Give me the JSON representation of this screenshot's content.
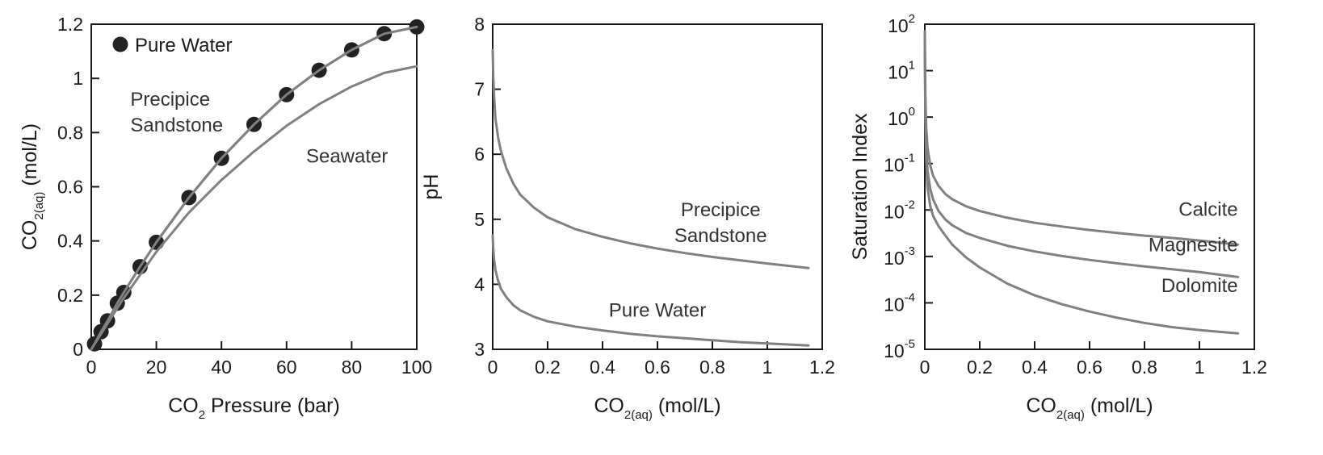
{
  "chart_data": [
    {
      "type": "line",
      "xlabel": {
        "main": "CO",
        "sub": "2",
        "rest": " Pressure (bar)"
      },
      "ylabel": {
        "main": "CO",
        "sub": "2(aq)",
        "rest": " (mol/L)"
      },
      "xlim": [
        0,
        100
      ],
      "ylim": [
        0,
        1.2
      ],
      "xticks": [
        0,
        20,
        40,
        60,
        80,
        100
      ],
      "yticks": [
        0,
        0.2,
        0.4,
        0.6,
        0.8,
        1.0,
        1.2
      ],
      "xtick_labels": [
        "0",
        "20",
        "40",
        "60",
        "80",
        "100"
      ],
      "ytick_labels": [
        "0",
        "0.2",
        "0.4",
        "0.6",
        "0.8",
        "1",
        "1.2"
      ],
      "grid": false,
      "legend": {
        "position": "top-left",
        "entries": [
          "Pure Water"
        ]
      },
      "series": [
        {
          "name": "Pure Water",
          "marker": "circle",
          "x": [
            1,
            3,
            5,
            8,
            10,
            15,
            20,
            30,
            40,
            50,
            60,
            70,
            80,
            90,
            100
          ],
          "y": [
            0.02,
            0.065,
            0.105,
            0.17,
            0.21,
            0.305,
            0.395,
            0.56,
            0.705,
            0.83,
            0.94,
            1.03,
            1.105,
            1.165,
            1.19
          ]
        },
        {
          "name": "Precipice Sandstone",
          "x": [
            0,
            1,
            3,
            5,
            8,
            10,
            15,
            20,
            30,
            40,
            50,
            60,
            70,
            80,
            90,
            100
          ],
          "y": [
            0,
            0.02,
            0.065,
            0.105,
            0.17,
            0.21,
            0.305,
            0.395,
            0.56,
            0.705,
            0.83,
            0.94,
            1.03,
            1.105,
            1.165,
            1.19
          ]
        },
        {
          "name": "Seawater",
          "x": [
            0,
            5,
            10,
            20,
            30,
            40,
            50,
            60,
            70,
            80,
            90,
            100
          ],
          "y": [
            0,
            0.095,
            0.19,
            0.36,
            0.505,
            0.625,
            0.73,
            0.825,
            0.905,
            0.97,
            1.02,
            1.045
          ]
        }
      ],
      "annotations": [
        {
          "lines": [
            "Precipice",
            "Sandstone"
          ],
          "x": 12,
          "y": 0.9
        },
        {
          "lines": [
            "Seawater"
          ],
          "x": 66,
          "y": 0.69
        }
      ]
    },
    {
      "type": "line",
      "xlabel": {
        "main": "CO",
        "sub": "2(aq)",
        "rest": " (mol/L)"
      },
      "ylabel": {
        "main": "pH",
        "sub": "",
        "rest": ""
      },
      "xlim": [
        0,
        1.2
      ],
      "ylim": [
        3,
        8
      ],
      "xticks": [
        0,
        0.2,
        0.4,
        0.6,
        0.8,
        1.0,
        1.2
      ],
      "yticks": [
        3,
        4,
        5,
        6,
        7,
        8
      ],
      "xtick_labels": [
        "0",
        "0.2",
        "0.4",
        "0.6",
        "0.8",
        "1",
        "1.2"
      ],
      "ytick_labels": [
        "3",
        "4",
        "5",
        "6",
        "7",
        "8"
      ],
      "grid": false,
      "series": [
        {
          "name": "Precipice Sandstone",
          "x": [
            0,
            0.002,
            0.005,
            0.01,
            0.02,
            0.03,
            0.05,
            0.075,
            0.1,
            0.15,
            0.2,
            0.3,
            0.4,
            0.5,
            0.6,
            0.7,
            0.8,
            0.9,
            1.0,
            1.15
          ],
          "y": [
            7.6,
            7.2,
            6.9,
            6.55,
            6.25,
            6.05,
            5.78,
            5.55,
            5.38,
            5.18,
            5.03,
            4.85,
            4.73,
            4.63,
            4.55,
            4.48,
            4.42,
            4.37,
            4.32,
            4.25
          ]
        },
        {
          "name": "Pure Water",
          "x": [
            0,
            0.002,
            0.005,
            0.01,
            0.02,
            0.03,
            0.05,
            0.075,
            0.1,
            0.15,
            0.2,
            0.3,
            0.4,
            0.5,
            0.6,
            0.7,
            0.8,
            0.9,
            1.0,
            1.15
          ],
          "y": [
            4.75,
            4.55,
            4.38,
            4.22,
            4.05,
            3.93,
            3.8,
            3.68,
            3.6,
            3.5,
            3.43,
            3.35,
            3.29,
            3.24,
            3.2,
            3.17,
            3.14,
            3.11,
            3.09,
            3.06
          ]
        }
      ],
      "annotations": [
        {
          "lines": [
            "Precipice",
            "Sandstone"
          ],
          "x": 0.83,
          "y": 5.05
        },
        {
          "lines": [
            "Pure Water"
          ],
          "x": 0.6,
          "y": 3.5
        }
      ]
    },
    {
      "type": "line",
      "xlabel": {
        "main": "CO",
        "sub": "2(aq)",
        "rest": " (mol/L)"
      },
      "ylabel": {
        "main": "Saturation Index",
        "sub": "",
        "rest": ""
      },
      "xlim": [
        0,
        1.2
      ],
      "ylim": [
        -5,
        2
      ],
      "yscale": "log",
      "xticks": [
        0,
        0.2,
        0.4,
        0.6,
        0.8,
        1.0,
        1.2
      ],
      "xtick_labels": [
        "0",
        "0.2",
        "0.4",
        "0.6",
        "0.8",
        "1",
        "1.2"
      ],
      "yticks": [
        -5,
        -4,
        -3,
        -2,
        -1,
        0,
        1,
        2
      ],
      "ytick_labels": [
        {
          "base": "10",
          "exp": "-5"
        },
        {
          "base": "10",
          "exp": "-4"
        },
        {
          "base": "10",
          "exp": "-3"
        },
        {
          "base": "10",
          "exp": "-2"
        },
        {
          "base": "10",
          "exp": "-1"
        },
        {
          "base": "10",
          "exp": "0"
        },
        {
          "base": "10",
          "exp": "1"
        },
        {
          "base": "10",
          "exp": "2"
        }
      ],
      "grid": false,
      "series": [
        {
          "name": "Calcite",
          "x": [
            0,
            0.002,
            0.005,
            0.01,
            0.02,
            0.03,
            0.05,
            0.075,
            0.1,
            0.15,
            0.2,
            0.3,
            0.4,
            0.5,
            0.6,
            0.7,
            0.8,
            0.9,
            1.0,
            1.14
          ],
          "y": [
            70,
            3.2,
            0.6,
            0.22,
            0.09,
            0.055,
            0.033,
            0.022,
            0.017,
            0.012,
            0.0095,
            0.0068,
            0.0053,
            0.0044,
            0.0037,
            0.0032,
            0.0028,
            0.0025,
            0.0022,
            0.0018
          ]
        },
        {
          "name": "Magnesite",
          "x": [
            0,
            0.002,
            0.005,
            0.01,
            0.02,
            0.03,
            0.05,
            0.075,
            0.1,
            0.15,
            0.2,
            0.3,
            0.4,
            0.5,
            0.6,
            0.7,
            0.8,
            0.9,
            1.0,
            1.14
          ],
          "y": [
            25,
            1.1,
            0.2,
            0.07,
            0.028,
            0.017,
            0.0095,
            0.0062,
            0.0047,
            0.0032,
            0.0025,
            0.0017,
            0.00128,
            0.00102,
            0.00084,
            0.00071,
            0.00061,
            0.00053,
            0.00046,
            0.00036
          ]
        },
        {
          "name": "Dolomite",
          "x": [
            0,
            0.002,
            0.005,
            0.01,
            0.02,
            0.03,
            0.05,
            0.075,
            0.1,
            0.15,
            0.2,
            0.3,
            0.4,
            0.5,
            0.6,
            0.7,
            0.8,
            0.9,
            1.0,
            1.14
          ],
          "y": [
            60,
            1.0,
            0.12,
            0.03,
            0.012,
            0.0075,
            0.0045,
            0.0028,
            0.0018,
            0.00095,
            0.00058,
            0.00026,
            0.000145,
            9.3e-05,
            6.5e-05,
            4.8e-05,
            3.7e-05,
            3e-05,
            2.6e-05,
            2.2e-05
          ]
        }
      ],
      "annotations": [
        {
          "lines": [
            "Calcite"
          ],
          "x": 1.14,
          "y": 0.0075
        },
        {
          "lines": [
            "Magnesite"
          ],
          "x": 1.14,
          "y": 0.0013
        },
        {
          "lines": [
            "Dolomite"
          ],
          "x": 1.14,
          "y": 0.00017
        }
      ]
    }
  ],
  "colors": {
    "axes": "#1a1a1a",
    "line": "#808080",
    "marker": "#222222",
    "text": "#1a1a1a"
  }
}
